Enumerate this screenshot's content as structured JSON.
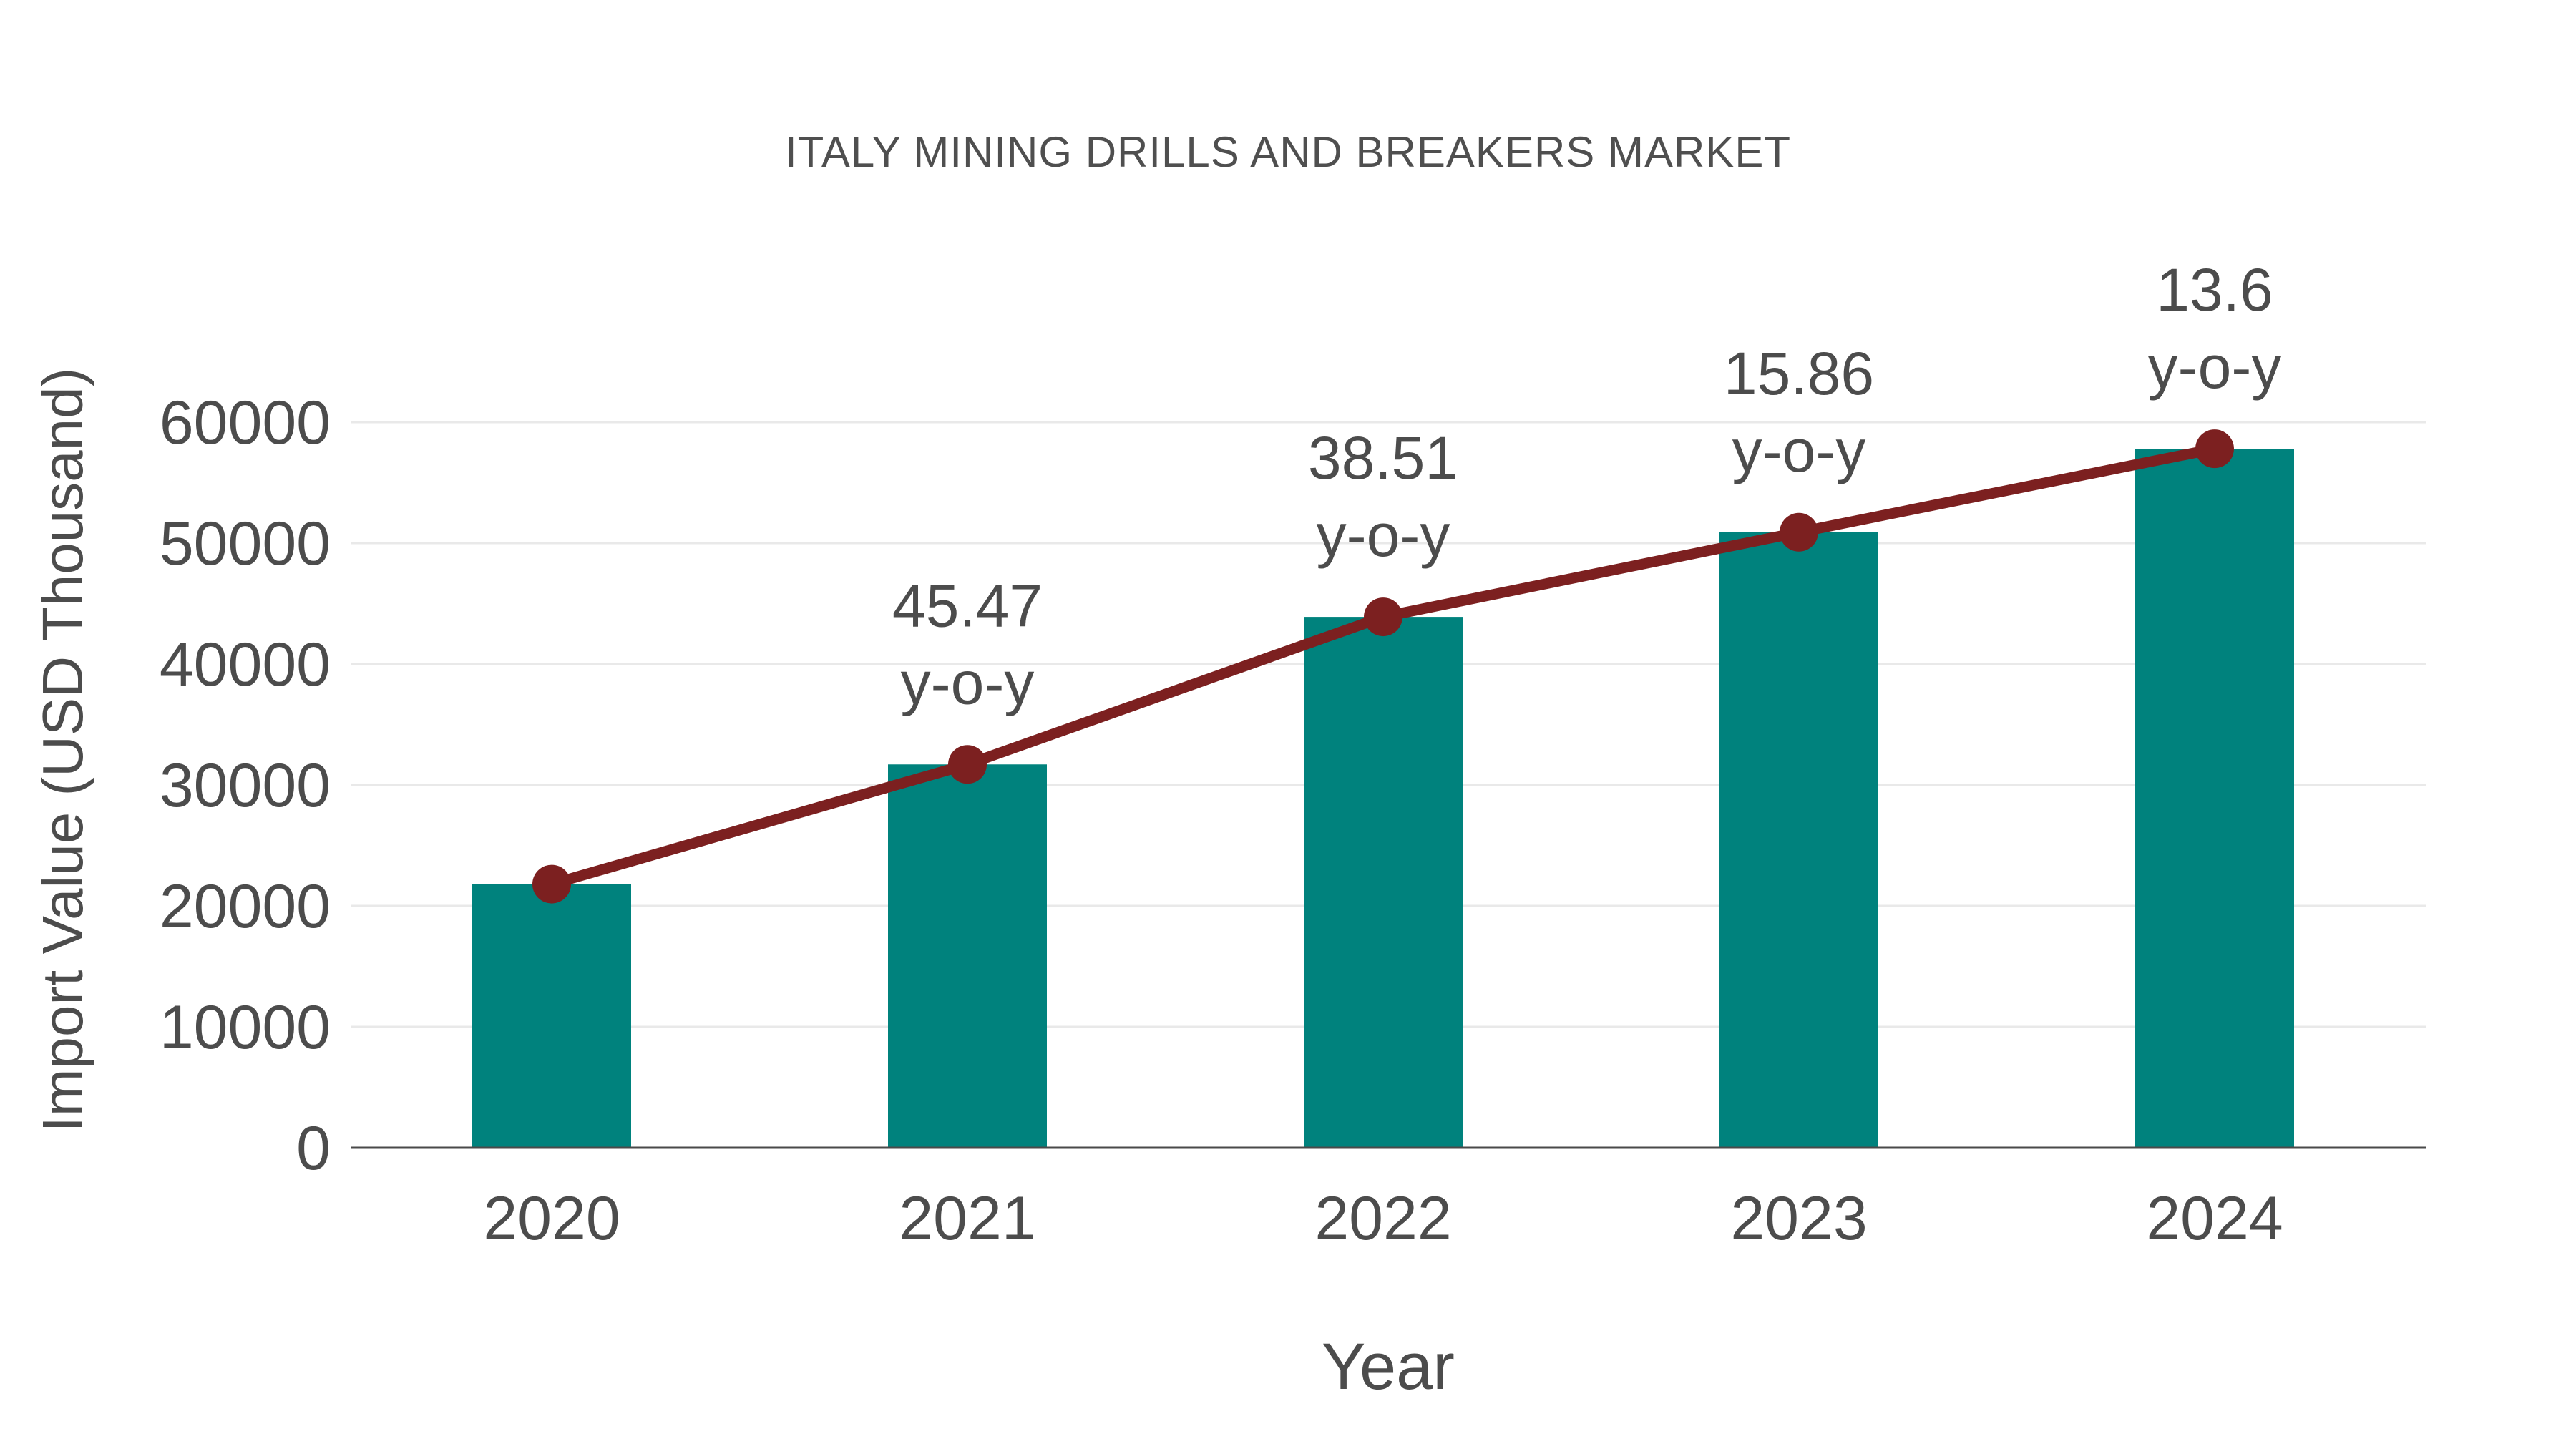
{
  "chart_data": {
    "type": "bar",
    "title": "ITALY MINING DRILLS AND BREAKERS MARKET",
    "xlabel": "Year",
    "ylabel": "Import Value (USD Thousand)",
    "categories": [
      "2020",
      "2021",
      "2022",
      "2023",
      "2024"
    ],
    "series": [
      {
        "name": "Import Value (USD Thousand)",
        "type": "bar",
        "values": [
          21800,
          31700,
          43900,
          50900,
          57800
        ],
        "color": "#00827d"
      },
      {
        "name": "y-o-y growth",
        "type": "line",
        "values": [
          21800,
          31700,
          43900,
          50900,
          57800
        ],
        "color": "#7c2020",
        "point_labels": [
          null,
          "45.47",
          "38.51",
          "15.86",
          "13.6"
        ],
        "point_label_suffix": "y-o-y"
      }
    ],
    "ylim": [
      0,
      60000
    ],
    "yticks": [
      0,
      10000,
      20000,
      30000,
      40000,
      50000,
      60000
    ],
    "grid": true,
    "legend_position": "none",
    "colors": {
      "text": "#4c4c4c",
      "grid": "#e9e9e9",
      "axis": "#4a4a4a"
    }
  }
}
